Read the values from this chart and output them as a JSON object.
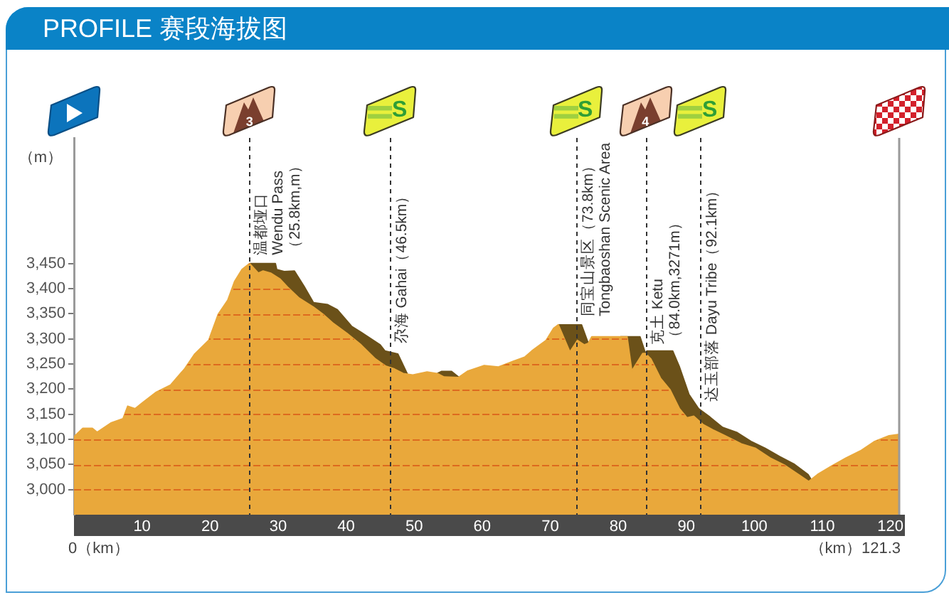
{
  "chart_data": {
    "type": "area",
    "title": "PROFILE 赛段海拔图",
    "ylabel": "（m）",
    "series": [
      {
        "color": "#e9a83b",
        "x": [
          0,
          1.3,
          2.7,
          3.4,
          5.5,
          7.2,
          7.9,
          9.0,
          10.0,
          12.1,
          14.2,
          16.3,
          17.7,
          19.8,
          21.2,
          22.6,
          23.6,
          24.7,
          25.8,
          27.1,
          27.8,
          28.9,
          30.3,
          31.4,
          33.1,
          35.2,
          36.6,
          38.0,
          40.1,
          42.2,
          44.3,
          45.8,
          47.1,
          48.4,
          49.8,
          51.9,
          53.4,
          54.4,
          56.5,
          57.9,
          60.3,
          62.4,
          64.5,
          66.3,
          67.3,
          69.4,
          70.5,
          71.2,
          72.9,
          74.0,
          75.0,
          75.6,
          76.1,
          81.3,
          82.0,
          83.6,
          84.0,
          84.8,
          86.2,
          87.6,
          89.0,
          90.1,
          91.1,
          92.5,
          93.9,
          96.0,
          98.1,
          100.2,
          102.3,
          104.4,
          106.5,
          108.0,
          109.3,
          111.4,
          113.5,
          115.6,
          117.7,
          119.8,
          121.3
        ],
        "values": [
          3105,
          3122,
          3122,
          3114,
          3133,
          3141,
          3166,
          3161,
          3172,
          3194,
          3208,
          3241,
          3269,
          3297,
          3349,
          3377,
          3414,
          3438,
          3450,
          3431,
          3435,
          3431,
          3419,
          3403,
          3381,
          3363,
          3349,
          3332,
          3311,
          3288,
          3260,
          3246,
          3240,
          3231,
          3228,
          3234,
          3231,
          3224,
          3223,
          3236,
          3247,
          3244,
          3255,
          3264,
          3276,
          3297,
          3321,
          3328,
          3274,
          3297,
          3288,
          3291,
          3304,
          3304,
          3236,
          3271,
          3271,
          3260,
          3222,
          3199,
          3161,
          3143,
          3146,
          3129,
          3119,
          3105,
          3091,
          3082,
          3063,
          3049,
          3030,
          3016,
          3030,
          3047,
          3063,
          3077,
          3096,
          3107,
          3110
        ]
      },
      {
        "color": "#6b5119",
        "x": [
          25.8,
          29.6,
          29.8,
          30.9,
          32.4,
          33.8,
          35.2,
          37.3,
          38.7,
          40.8,
          42.9,
          45.0,
          45.7,
          47.6,
          49.0,
          51.0,
          53.4,
          54.0,
          55.5,
          56.6,
          63.0,
          71.2,
          74.6,
          75.6,
          78.0,
          80.3,
          83.2,
          84.0,
          84.2,
          88.0,
          89.0,
          90.4,
          91.8,
          93.5,
          95.3,
          97.4,
          99.5,
          101.6,
          103.7,
          105.8,
          107.9,
          108.4
        ],
        "values": [
          3450,
          3450,
          3438,
          3434,
          3435,
          3405,
          3372,
          3368,
          3358,
          3325,
          3307,
          3288,
          3276,
          3270,
          3230,
          null,
          3231,
          3235,
          3235,
          3223,
          null,
          3328,
          3328,
          3291,
          null,
          3304,
          3304,
          3271,
          3276,
          3276,
          3244,
          3189,
          3161,
          3144,
          3124,
          3114,
          3096,
          3082,
          3066,
          3051,
          3030,
          3019
        ]
      }
    ],
    "xlim": [
      0,
      121.3
    ],
    "xticks": [
      10,
      20,
      30,
      40,
      50,
      60,
      70,
      80,
      90,
      100,
      110,
      120
    ],
    "ylim": [
      2950,
      3700
    ],
    "yticks": [
      {
        "value": 3000,
        "label": "3,000"
      },
      {
        "value": 3050,
        "label": "3,050"
      },
      {
        "value": 3100,
        "label": "3,100"
      },
      {
        "value": 3150,
        "label": "3,150"
      },
      {
        "value": 3200,
        "label": "3,200"
      },
      {
        "value": 3250,
        "label": "3,250"
      },
      {
        "value": 3300,
        "label": "3,300"
      },
      {
        "value": 3350,
        "label": "3,350"
      },
      {
        "value": 3400,
        "label": "3,400"
      },
      {
        "value": 3450,
        "label": "3,450"
      }
    ],
    "grid": "y",
    "ref_lines": [
      {
        "axis": "x",
        "value": 25.8,
        "label": "温都垭口\nWendu Pass\n（25.8km,m）",
        "color": "#333333",
        "line_style": "dashed"
      },
      {
        "axis": "x",
        "value": 46.5,
        "label": "尕海 Gahai（46.5km）",
        "color": "#333333",
        "line_style": "dashed"
      },
      {
        "axis": "x",
        "value": 73.8,
        "label": "同宝山景区（73.8km）\nTongbaoshan Scenic Area",
        "color": "#333333",
        "line_style": "dashed"
      },
      {
        "axis": "x",
        "value": 84.0,
        "label": "克土 Ketu\n（84.0km,3271m）",
        "color": "#333333",
        "line_style": "dashed"
      },
      {
        "axis": "x",
        "value": 92.1,
        "label": "达玉部落 Dayu Tribe（92.1km）",
        "color": "#333333",
        "line_style": "dashed"
      }
    ],
    "annotations": [
      "0（km）",
      "（km）121.3",
      "3",
      "S",
      "S",
      "4",
      "S"
    ]
  }
}
